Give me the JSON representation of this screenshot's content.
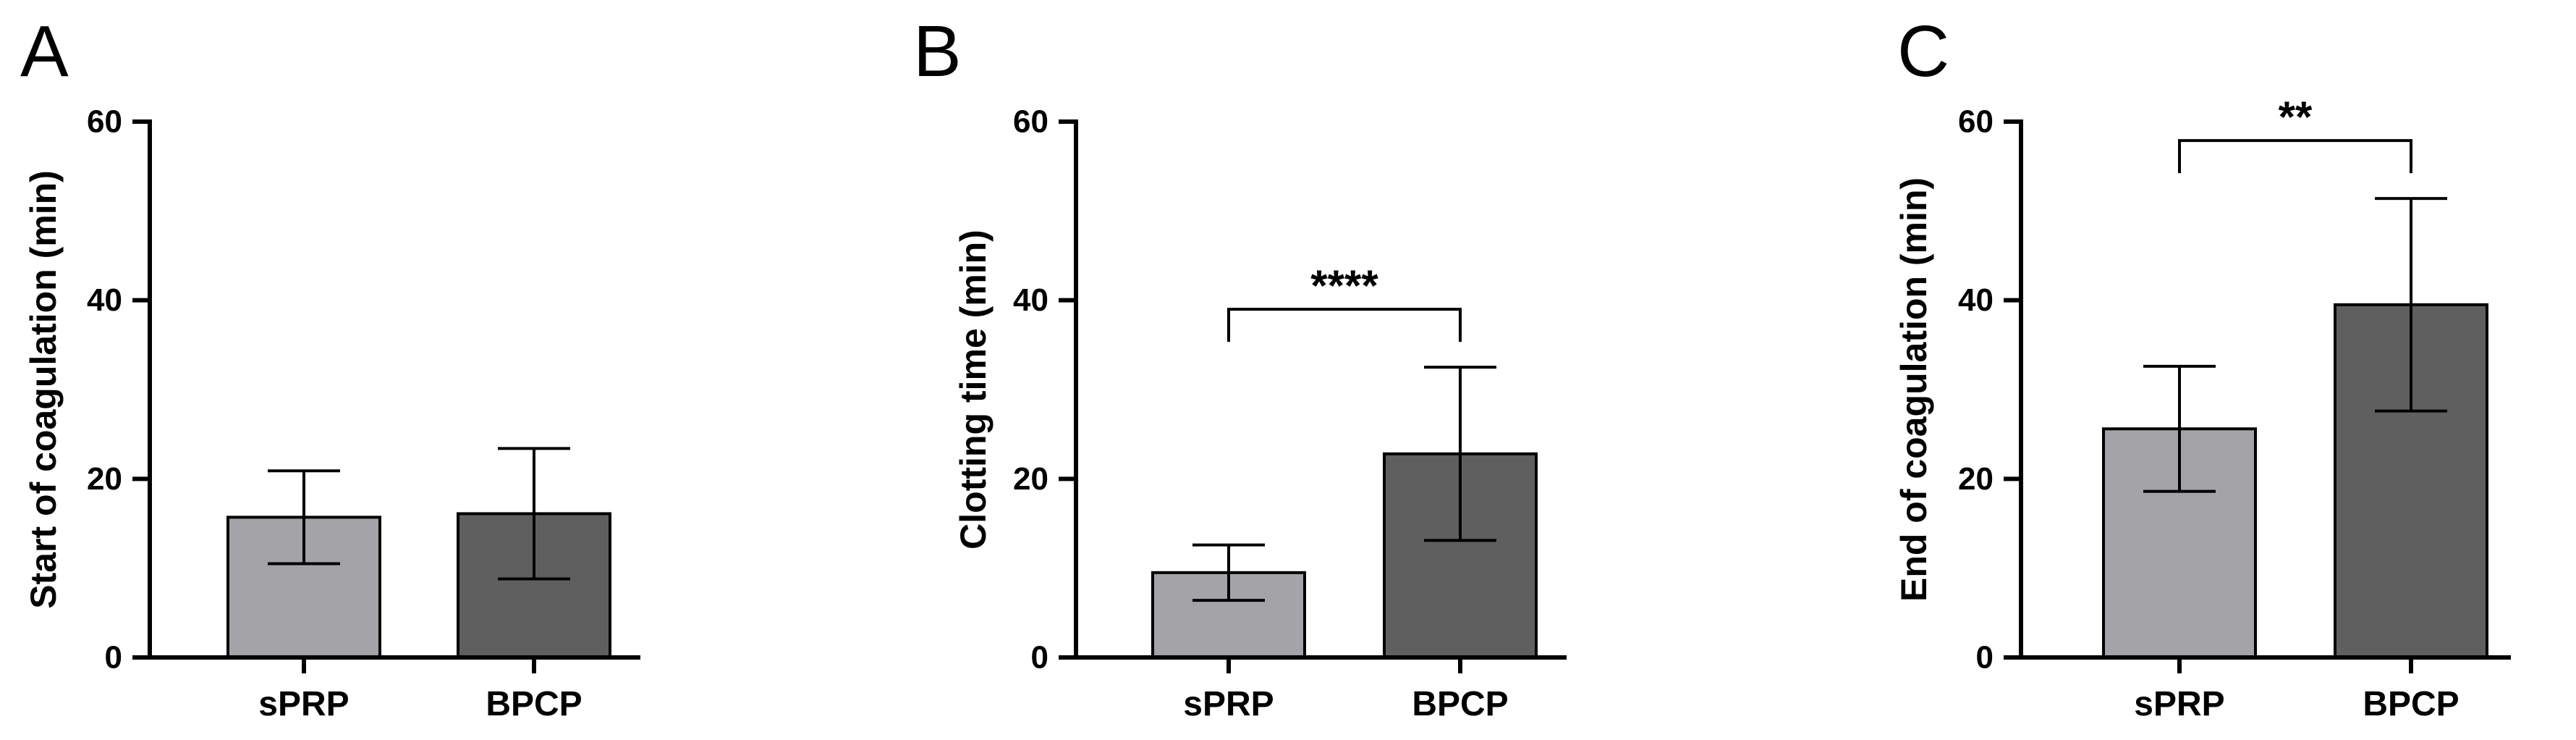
{
  "chart_data": [
    {
      "type": "bar",
      "panel": "A",
      "categories": [
        "sPRP",
        "BPCP"
      ],
      "values": [
        15.7,
        16.1
      ],
      "errors": [
        5.2,
        7.3
      ],
      "colors": [
        "#a3a3a8",
        "#5f5f5f"
      ],
      "title": "",
      "xlabel": "",
      "ylabel": "Start of coagulation (min)",
      "ylim": [
        0,
        60
      ],
      "yticks": [
        0,
        20,
        40,
        60
      ],
      "significance": null
    },
    {
      "type": "bar",
      "panel": "B",
      "categories": [
        "sPRP",
        "BPCP"
      ],
      "values": [
        9.5,
        22.8
      ],
      "errors": [
        3.1,
        9.7
      ],
      "colors": [
        "#a3a3a8",
        "#5f5f5f"
      ],
      "title": "",
      "xlabel": "",
      "ylabel": "Clotting time (min)",
      "ylim": [
        0,
        60
      ],
      "yticks": [
        0,
        20,
        40,
        60
      ],
      "significance": {
        "label": "****",
        "from": 0,
        "to": 1
      }
    },
    {
      "type": "bar",
      "panel": "C",
      "categories": [
        "sPRP",
        "BPCP"
      ],
      "values": [
        25.6,
        39.5
      ],
      "errors": [
        7.0,
        11.9
      ],
      "colors": [
        "#a3a3a8",
        "#5f5f5f"
      ],
      "title": "",
      "xlabel": "",
      "ylabel": "End of coagulation (min)",
      "ylim": [
        0,
        60
      ],
      "yticks": [
        0,
        20,
        40,
        60
      ],
      "significance": {
        "label": "**",
        "from": 0,
        "to": 1
      }
    }
  ]
}
